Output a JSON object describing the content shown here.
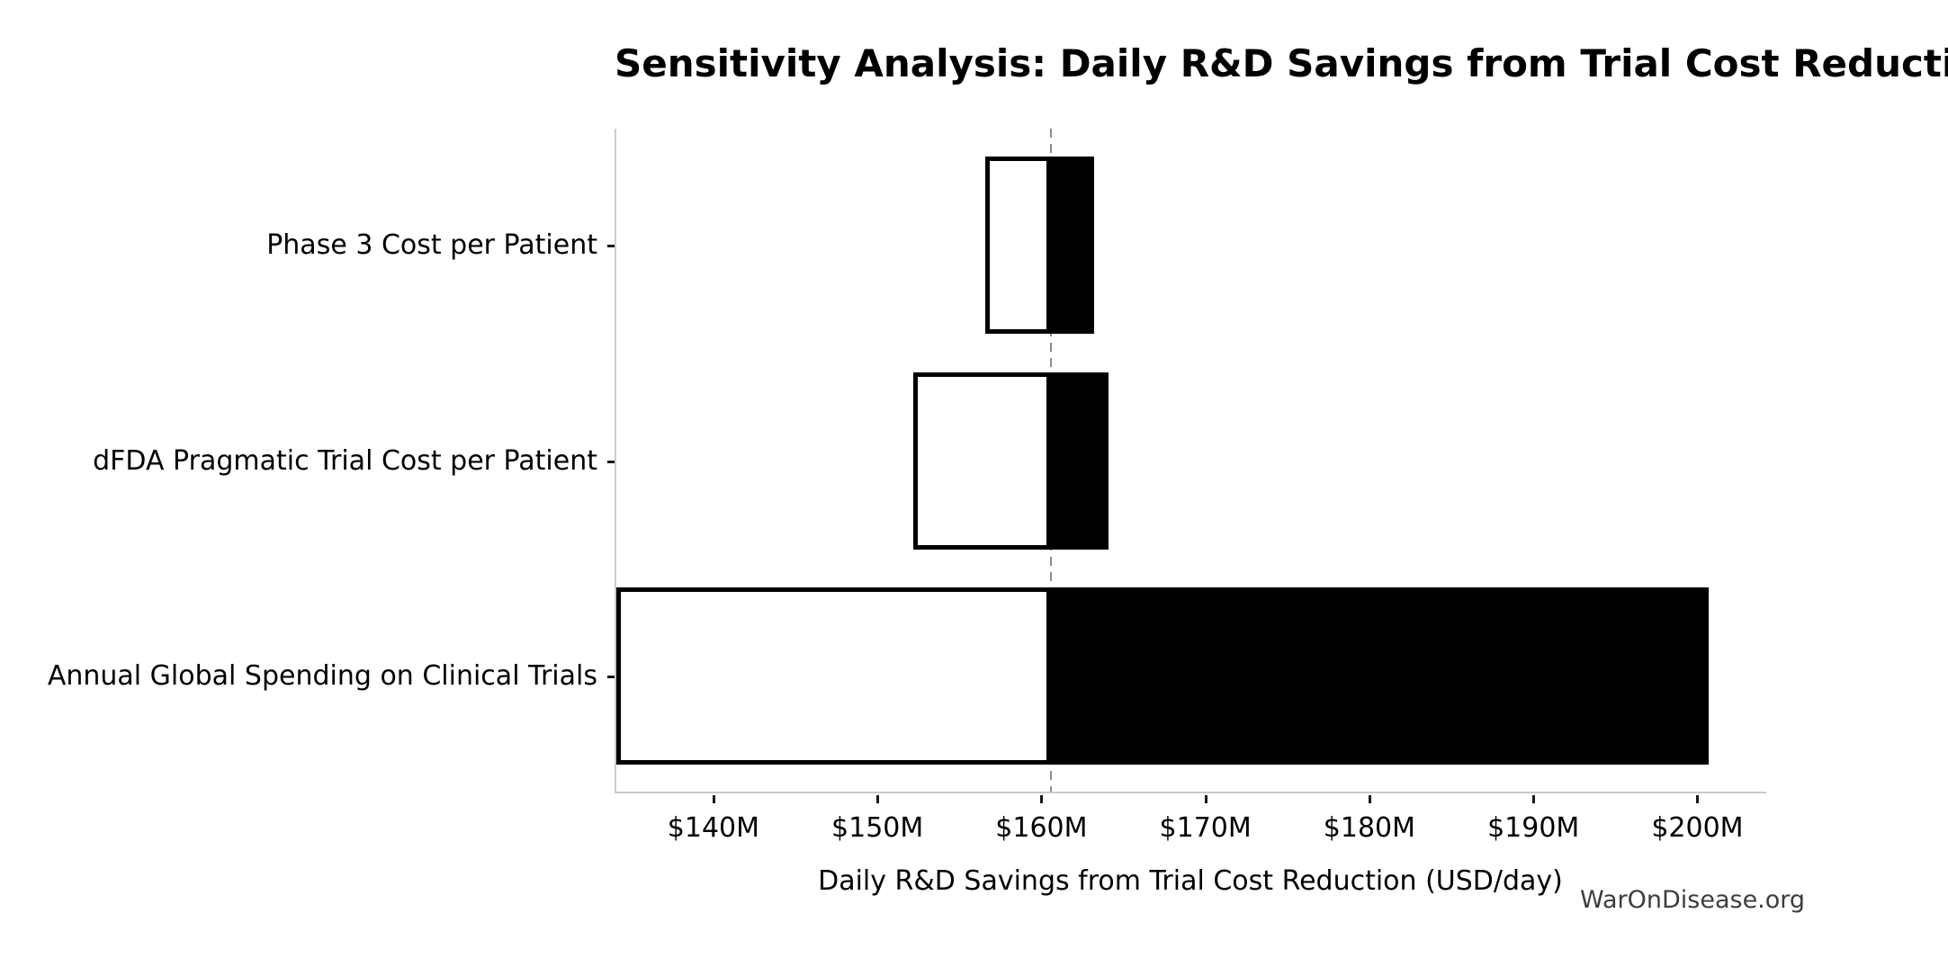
{
  "chart_data": {
    "type": "bar",
    "variant": "tornado-sensitivity",
    "title": "Sensitivity Analysis: Daily R&D Savings from Trial Cost Reduction",
    "xlabel": "Daily R&D Savings from Trial Cost Reduction (USD/day)",
    "unit": "USD millions per day",
    "xlim": [
      133.97,
      204.2
    ],
    "baseline_value": 160.6,
    "baseline_style": "dashed",
    "grid": false,
    "legend": null,
    "categories": [
      {
        "label": "Phase 3 Cost per Patient",
        "low": 156.6,
        "high": 163.2
      },
      {
        "label": "dFDA Pragmatic Trial Cost per Patient",
        "low": 152.2,
        "high": 164.1
      },
      {
        "label": "Annual Global Spending on Clinical Trials",
        "low": 134.1,
        "high": 200.7
      }
    ],
    "xticks": [
      {
        "value": 140,
        "label": "$140M"
      },
      {
        "value": 150,
        "label": "$150M"
      },
      {
        "value": 160,
        "label": "$160M"
      },
      {
        "value": 170,
        "label": "$170M"
      },
      {
        "value": 180,
        "label": "$180M"
      },
      {
        "value": 190,
        "label": "$190M"
      },
      {
        "value": 200,
        "label": "$200M"
      }
    ],
    "colors": {
      "low_fill": "#ffffff",
      "high_fill": "#000000",
      "bar_edge": "#000000",
      "baseline_line": "#8a8a8a",
      "spine": "#cbcbcb",
      "tick_mark": "#191919",
      "text": "#000000"
    }
  },
  "watermark": {
    "text": "WarOnDisease.org",
    "color": "#3d3d3d"
  }
}
